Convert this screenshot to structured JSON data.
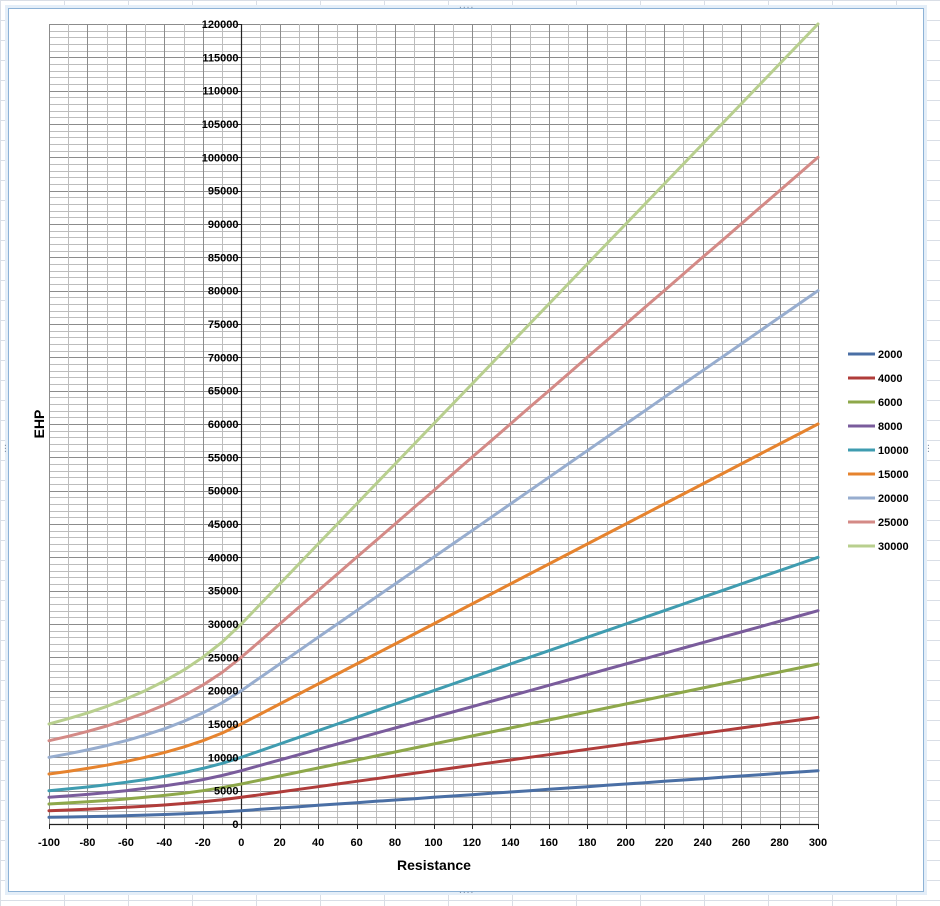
{
  "chart_data": {
    "type": "line",
    "title": "",
    "xlabel": "Resistance",
    "ylabel": "EHP",
    "xlim": [
      -100,
      300
    ],
    "ylim": [
      0,
      120000
    ],
    "x_major_step": 20,
    "x_minor_step": 10,
    "y_major_step": 5000,
    "y_minor_step": 1000,
    "grid": true,
    "legend_position": "right",
    "x_tick_labels": [
      "-100",
      "-80",
      "-60",
      "-40",
      "-20",
      "0",
      "20",
      "40",
      "60",
      "80",
      "100",
      "120",
      "140",
      "160",
      "180",
      "200",
      "220",
      "240",
      "260",
      "280",
      "300"
    ],
    "y_tick_labels": [
      "0",
      "5000",
      "10000",
      "15000",
      "20000",
      "25000",
      "30000",
      "35000",
      "40000",
      "45000",
      "50000",
      "55000",
      "60000",
      "65000",
      "70000",
      "75000",
      "80000",
      "85000",
      "90000",
      "95000",
      "100000",
      "105000",
      "110000",
      "115000",
      "120000"
    ],
    "x": [
      -100,
      -90,
      -80,
      -70,
      -60,
      -50,
      -40,
      -30,
      -20,
      -10,
      0,
      10,
      20,
      30,
      40,
      50,
      60,
      70,
      80,
      90,
      100,
      110,
      120,
      130,
      140,
      150,
      160,
      170,
      180,
      190,
      200,
      210,
      220,
      230,
      240,
      250,
      260,
      270,
      280,
      290,
      300
    ],
    "series": [
      {
        "name": "2000",
        "color": "#4a6fa5",
        "values": [
          1000,
          1053,
          1111,
          1176,
          1250,
          1333,
          1429,
          1538,
          1667,
          1818,
          2000,
          2200,
          2400,
          2600,
          2800,
          3000,
          3200,
          3400,
          3600,
          3800,
          4000,
          4200,
          4400,
          4600,
          4800,
          5000,
          5200,
          5400,
          5600,
          5800,
          6000,
          6200,
          6400,
          6600,
          6800,
          7000,
          7200,
          7400,
          7600,
          7800,
          8000
        ]
      },
      {
        "name": "4000",
        "color": "#b03c3a",
        "values": [
          2000,
          2105,
          2222,
          2353,
          2500,
          2667,
          2857,
          3077,
          3333,
          3636,
          4000,
          4400,
          4800,
          5200,
          5600,
          6000,
          6400,
          6800,
          7200,
          7600,
          8000,
          8400,
          8800,
          9200,
          9600,
          10000,
          10400,
          10800,
          11200,
          11600,
          12000,
          12400,
          12800,
          13200,
          13600,
          14000,
          14400,
          14800,
          15200,
          15600,
          16000
        ]
      },
      {
        "name": "6000",
        "color": "#8ea84a",
        "values": [
          3000,
          3158,
          3333,
          3529,
          3750,
          4000,
          4286,
          4615,
          5000,
          5455,
          6000,
          6600,
          7200,
          7800,
          8400,
          9000,
          9600,
          10200,
          10800,
          11400,
          12000,
          12600,
          13200,
          13800,
          14400,
          15000,
          15600,
          16200,
          16800,
          17400,
          18000,
          18600,
          19200,
          19800,
          20400,
          21000,
          21600,
          22200,
          22800,
          23400,
          24000
        ]
      },
      {
        "name": "8000",
        "color": "#7a5c9c",
        "values": [
          4000,
          4211,
          4444,
          4706,
          5000,
          5333,
          5714,
          6154,
          6667,
          7273,
          8000,
          8800,
          9600,
          10400,
          11200,
          12000,
          12800,
          13600,
          14400,
          15200,
          16000,
          16800,
          17600,
          18400,
          19200,
          20000,
          20800,
          21600,
          22400,
          23200,
          24000,
          24800,
          25600,
          26400,
          27200,
          28000,
          28800,
          29600,
          30400,
          31200,
          32000
        ]
      },
      {
        "name": "10000",
        "color": "#3f9cb0",
        "values": [
          5000,
          5263,
          5556,
          5882,
          6250,
          6667,
          7143,
          7692,
          8333,
          9091,
          10000,
          11000,
          12000,
          13000,
          14000,
          15000,
          16000,
          17000,
          18000,
          19000,
          20000,
          21000,
          22000,
          23000,
          24000,
          25000,
          26000,
          27000,
          28000,
          29000,
          30000,
          31000,
          32000,
          33000,
          34000,
          35000,
          36000,
          37000,
          38000,
          39000,
          40000
        ]
      },
      {
        "name": "15000",
        "color": "#e6832e",
        "values": [
          7500,
          7895,
          8333,
          8824,
          9375,
          10000,
          10714,
          11538,
          12500,
          13636,
          15000,
          16500,
          18000,
          19500,
          21000,
          22500,
          24000,
          25500,
          27000,
          28500,
          30000,
          31500,
          33000,
          34500,
          36000,
          37500,
          39000,
          40500,
          42000,
          43500,
          45000,
          46500,
          48000,
          49500,
          51000,
          52500,
          54000,
          55500,
          57000,
          58500,
          60000
        ]
      },
      {
        "name": "20000",
        "color": "#97adcf",
        "values": [
          10000,
          10526,
          11111,
          11765,
          12500,
          13333,
          14286,
          15385,
          16667,
          18182,
          20000,
          22000,
          24000,
          26000,
          28000,
          30000,
          32000,
          34000,
          36000,
          38000,
          40000,
          42000,
          44000,
          46000,
          48000,
          50000,
          52000,
          54000,
          56000,
          58000,
          60000,
          62000,
          64000,
          66000,
          68000,
          70000,
          72000,
          74000,
          76000,
          78000,
          80000
        ]
      },
      {
        "name": "25000",
        "color": "#d48a86",
        "values": [
          12500,
          13158,
          13889,
          14706,
          15625,
          16667,
          17857,
          19231,
          20833,
          22727,
          25000,
          27500,
          30000,
          32500,
          35000,
          37500,
          40000,
          42500,
          45000,
          47500,
          50000,
          52500,
          55000,
          57500,
          60000,
          62500,
          65000,
          67500,
          70000,
          72500,
          75000,
          77500,
          80000,
          82500,
          85000,
          87500,
          90000,
          92500,
          95000,
          97500,
          100000
        ]
      },
      {
        "name": "30000",
        "color": "#b8cf8e",
        "values": [
          15000,
          15789,
          16667,
          17647,
          18750,
          20000,
          21429,
          23077,
          25000,
          27273,
          30000,
          33000,
          36000,
          39000,
          42000,
          45000,
          48000,
          51000,
          54000,
          57000,
          60000,
          63000,
          66000,
          69000,
          72000,
          75000,
          78000,
          81000,
          84000,
          87000,
          90000,
          93000,
          96000,
          99000,
          102000,
          105000,
          108000,
          111000,
          114000,
          117000,
          120000
        ]
      }
    ]
  }
}
